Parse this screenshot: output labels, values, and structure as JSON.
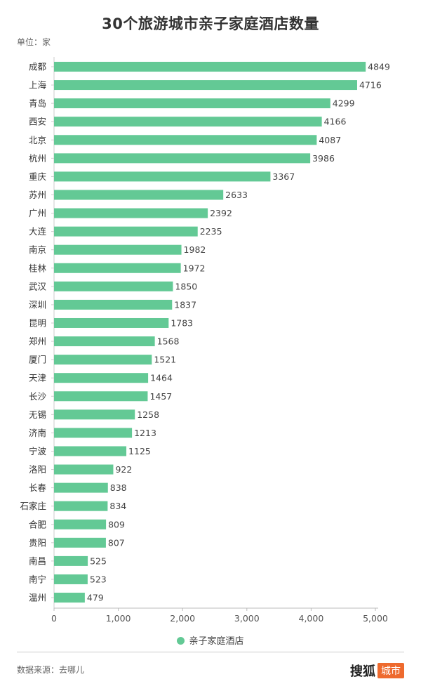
{
  "header": {
    "title": "30个旅游城市亲子家庭酒店数量",
    "unit": "单位：家"
  },
  "footer": {
    "source": "数据来源：去哪儿",
    "brand_main": "搜狐",
    "brand_sub": "城市"
  },
  "colors": {
    "bar": "#63c995",
    "brand_box": "#ee6a2e"
  },
  "chart_data": {
    "type": "bar",
    "orientation": "horizontal",
    "categories": [
      "成都",
      "上海",
      "青岛",
      "西安",
      "北京",
      "杭州",
      "重庆",
      "苏州",
      "广州",
      "大连",
      "南京",
      "桂林",
      "武汉",
      "深圳",
      "昆明",
      "郑州",
      "厦门",
      "天津",
      "长沙",
      "无锡",
      "济南",
      "宁波",
      "洛阳",
      "长春",
      "石家庄",
      "合肥",
      "贵阳",
      "南昌",
      "南宁",
      "温州"
    ],
    "series": [
      {
        "name": "亲子家庭酒店",
        "values": [
          4849,
          4716,
          4299,
          4166,
          4087,
          3986,
          3367,
          2633,
          2392,
          2235,
          1982,
          1972,
          1850,
          1837,
          1783,
          1568,
          1521,
          1464,
          1457,
          1258,
          1213,
          1125,
          922,
          838,
          834,
          809,
          807,
          525,
          523,
          479
        ]
      }
    ],
    "xlim": [
      0,
      5000
    ],
    "x_ticks": [
      0,
      1000,
      2000,
      3000,
      4000,
      5000
    ],
    "x_tick_labels": [
      "0",
      "1,000",
      "2,000",
      "3,000",
      "4,000",
      "5,000"
    ],
    "data_labels": true,
    "grid": false,
    "legend_position": "bottom"
  }
}
